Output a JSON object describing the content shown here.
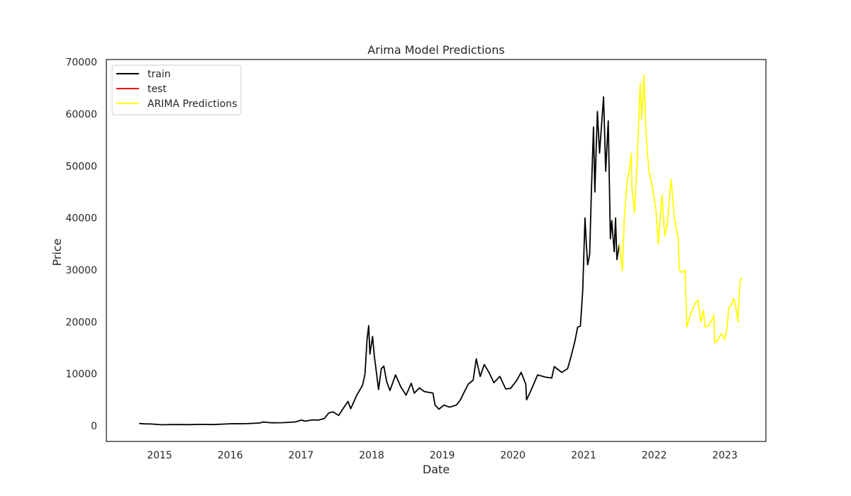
{
  "chart_data": {
    "type": "line",
    "title": "Arima Model Predictions",
    "xlabel": "Date",
    "ylabel": "Price",
    "xlim": [
      "2014-04-01",
      "2023-08-01"
    ],
    "ylim": [
      -3000,
      70500
    ],
    "x_ticks": [
      "2015",
      "2016",
      "2017",
      "2018",
      "2019",
      "2020",
      "2021",
      "2022",
      "2023"
    ],
    "y_ticks": [
      "0",
      "10000",
      "20000",
      "30000",
      "40000",
      "50000",
      "60000",
      "70000"
    ],
    "grid": false,
    "legend_position": "top-left",
    "series": [
      {
        "name": "train",
        "color": "#000000",
        "points": [
          [
            "2014-09-17",
            460
          ],
          [
            "2014-10-15",
            380
          ],
          [
            "2014-11-20",
            350
          ],
          [
            "2015-01-14",
            200
          ],
          [
            "2015-03-01",
            260
          ],
          [
            "2015-06-01",
            230
          ],
          [
            "2015-08-01",
            280
          ],
          [
            "2015-10-01",
            240
          ],
          [
            "2015-11-20",
            330
          ],
          [
            "2016-01-15",
            420
          ],
          [
            "2016-03-15",
            410
          ],
          [
            "2016-06-01",
            540
          ],
          [
            "2016-06-18",
            750
          ],
          [
            "2016-08-01",
            580
          ],
          [
            "2016-10-01",
            610
          ],
          [
            "2016-12-01",
            750
          ],
          [
            "2017-01-05",
            1100
          ],
          [
            "2017-01-20",
            900
          ],
          [
            "2017-03-01",
            1150
          ],
          [
            "2017-04-01",
            1100
          ],
          [
            "2017-05-01",
            1400
          ],
          [
            "2017-05-25",
            2500
          ],
          [
            "2017-06-15",
            2700
          ],
          [
            "2017-07-15",
            2000
          ],
          [
            "2017-08-10",
            3500
          ],
          [
            "2017-09-01",
            4700
          ],
          [
            "2017-09-15",
            3300
          ],
          [
            "2017-10-15",
            5800
          ],
          [
            "2017-11-15",
            7800
          ],
          [
            "2017-11-28",
            10000
          ],
          [
            "2017-12-08",
            16500
          ],
          [
            "2017-12-17",
            19300
          ],
          [
            "2017-12-23",
            13800
          ],
          [
            "2018-01-06",
            17200
          ],
          [
            "2018-01-15",
            13500
          ],
          [
            "2018-02-06",
            7000
          ],
          [
            "2018-02-20",
            11000
          ],
          [
            "2018-03-05",
            11500
          ],
          [
            "2018-03-20",
            8500
          ],
          [
            "2018-04-06",
            6800
          ],
          [
            "2018-05-05",
            9800
          ],
          [
            "2018-06-01",
            7500
          ],
          [
            "2018-06-28",
            5900
          ],
          [
            "2018-07-25",
            8200
          ],
          [
            "2018-08-10",
            6300
          ],
          [
            "2018-09-05",
            7300
          ],
          [
            "2018-10-01",
            6600
          ],
          [
            "2018-11-14",
            6300
          ],
          [
            "2018-11-25",
            4000
          ],
          [
            "2018-12-15",
            3200
          ],
          [
            "2019-01-10",
            4000
          ],
          [
            "2019-02-08",
            3600
          ],
          [
            "2019-03-15",
            4000
          ],
          [
            "2019-04-05",
            5000
          ],
          [
            "2019-05-15",
            8000
          ],
          [
            "2019-06-10",
            8800
          ],
          [
            "2019-06-26",
            12900
          ],
          [
            "2019-07-16",
            9500
          ],
          [
            "2019-08-06",
            11800
          ],
          [
            "2019-09-01",
            10200
          ],
          [
            "2019-09-25",
            8300
          ],
          [
            "2019-10-26",
            9500
          ],
          [
            "2019-11-25",
            7100
          ],
          [
            "2019-12-20",
            7200
          ],
          [
            "2020-01-20",
            8700
          ],
          [
            "2020-02-13",
            10300
          ],
          [
            "2020-03-08",
            8000
          ],
          [
            "2020-03-12",
            5000
          ],
          [
            "2020-04-01",
            6600
          ],
          [
            "2020-05-08",
            9800
          ],
          [
            "2020-06-15",
            9400
          ],
          [
            "2020-07-20",
            9200
          ],
          [
            "2020-08-02",
            11400
          ],
          [
            "2020-09-10",
            10300
          ],
          [
            "2020-10-10",
            11000
          ],
          [
            "2020-10-25",
            13000
          ],
          [
            "2020-11-15",
            16000
          ],
          [
            "2020-12-01",
            19000
          ],
          [
            "2020-12-15",
            19200
          ],
          [
            "2020-12-27",
            26000
          ],
          [
            "2021-01-08",
            40000
          ],
          [
            "2021-01-15",
            35000
          ],
          [
            "2021-01-22",
            31000
          ],
          [
            "2021-02-01",
            33000
          ],
          [
            "2021-02-10",
            45000
          ],
          [
            "2021-02-21",
            57500
          ],
          [
            "2021-02-28",
            45000
          ],
          [
            "2021-03-13",
            60500
          ],
          [
            "2021-03-24",
            52500
          ],
          [
            "2021-04-14",
            63300
          ],
          [
            "2021-04-25",
            49000
          ],
          [
            "2021-05-08",
            58700
          ],
          [
            "2021-05-19",
            36000
          ],
          [
            "2021-05-26",
            39500
          ],
          [
            "2021-06-08",
            33500
          ],
          [
            "2021-06-15",
            40000
          ],
          [
            "2021-06-22",
            32000
          ],
          [
            "2021-07-05",
            35000
          ]
        ]
      },
      {
        "name": "test",
        "color": "#ff0000",
        "points": []
      },
      {
        "name": "ARIMA Predictions",
        "color": "#ffff00",
        "points": [
          [
            "2021-07-05",
            35000
          ],
          [
            "2021-07-20",
            29800
          ],
          [
            "2021-07-30",
            40000
          ],
          [
            "2021-08-15",
            47500
          ],
          [
            "2021-08-25",
            49000
          ],
          [
            "2021-09-05",
            52500
          ],
          [
            "2021-09-07",
            46000
          ],
          [
            "2021-09-21",
            41000
          ],
          [
            "2021-10-05",
            51500
          ],
          [
            "2021-10-20",
            66000
          ],
          [
            "2021-10-28",
            59000
          ],
          [
            "2021-11-09",
            67500
          ],
          [
            "2021-11-20",
            56000
          ],
          [
            "2021-12-04",
            49000
          ],
          [
            "2021-12-20",
            46500
          ],
          [
            "2022-01-10",
            41500
          ],
          [
            "2022-01-22",
            35000
          ],
          [
            "2022-02-10",
            44500
          ],
          [
            "2022-02-24",
            36500
          ],
          [
            "2022-03-10",
            39000
          ],
          [
            "2022-03-29",
            47500
          ],
          [
            "2022-04-15",
            40000
          ],
          [
            "2022-05-05",
            36000
          ],
          [
            "2022-05-10",
            30000
          ],
          [
            "2022-05-25",
            29500
          ],
          [
            "2022-06-10",
            30000
          ],
          [
            "2022-06-18",
            19000
          ],
          [
            "2022-07-08",
            21500
          ],
          [
            "2022-07-30",
            23500
          ],
          [
            "2022-08-15",
            24200
          ],
          [
            "2022-08-30",
            20000
          ],
          [
            "2022-09-12",
            22300
          ],
          [
            "2022-09-20",
            19000
          ],
          [
            "2022-10-10",
            19300
          ],
          [
            "2022-10-30",
            20700
          ],
          [
            "2022-11-05",
            21300
          ],
          [
            "2022-11-09",
            16000
          ],
          [
            "2022-11-25",
            16500
          ],
          [
            "2022-12-13",
            17800
          ],
          [
            "2022-12-31",
            16600
          ],
          [
            "2023-01-12",
            18900
          ],
          [
            "2023-01-21",
            22700
          ],
          [
            "2023-02-05",
            23300
          ],
          [
            "2023-02-16",
            24500
          ],
          [
            "2023-02-25",
            23200
          ],
          [
            "2023-03-10",
            20000
          ],
          [
            "2023-03-15",
            24800
          ],
          [
            "2023-03-22",
            28100
          ],
          [
            "2023-03-31",
            28500
          ]
        ]
      }
    ]
  }
}
